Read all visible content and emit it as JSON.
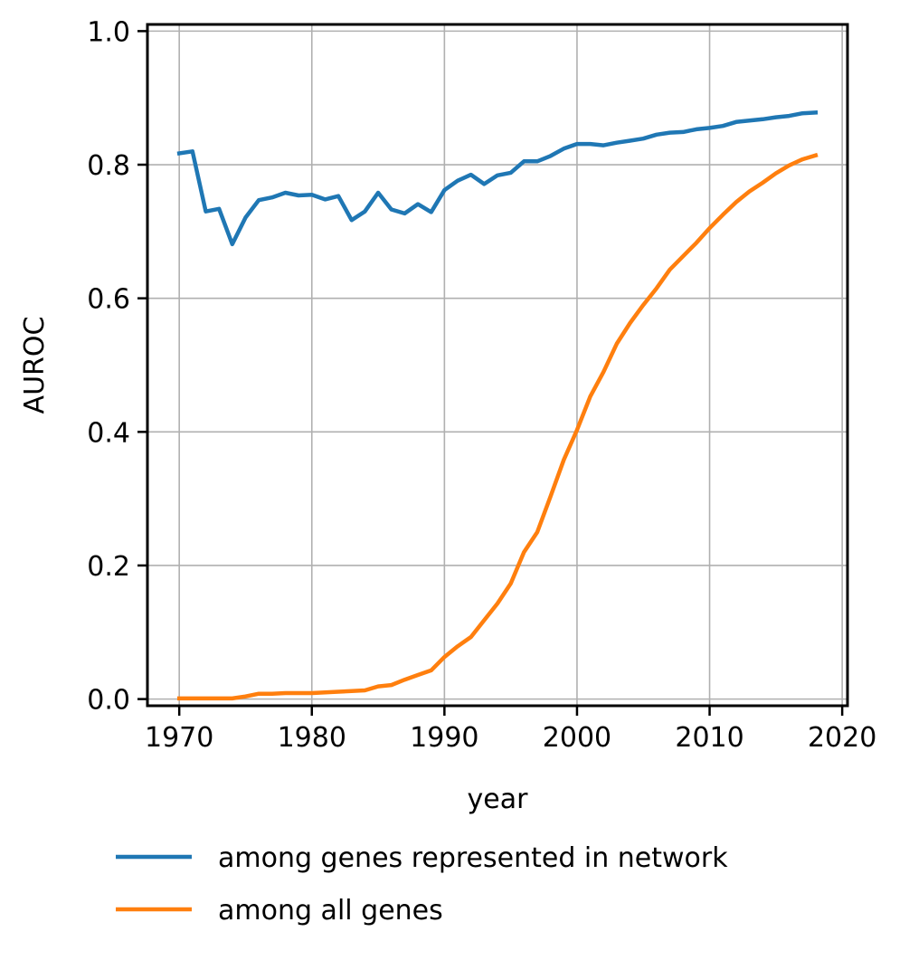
{
  "chart_data": {
    "type": "line",
    "title": "",
    "xlabel": "year",
    "ylabel": "AUROC",
    "xlim": [
      1967.6,
      2020.4
    ],
    "ylim": [
      -0.01,
      1.01
    ],
    "xticks": [
      1970,
      1980,
      1990,
      2000,
      2010,
      2020
    ],
    "yticks": [
      0.0,
      0.2,
      0.4,
      0.6,
      0.8,
      1.0
    ],
    "xtick_labels": [
      "1970",
      "1980",
      "1990",
      "2000",
      "2010",
      "2020"
    ],
    "ytick_labels": [
      "0.0",
      "0.2",
      "0.4",
      "0.6",
      "0.8",
      "1.0"
    ],
    "grid": true,
    "legend_position": "below",
    "x": [
      1970,
      1971,
      1972,
      1973,
      1974,
      1975,
      1976,
      1977,
      1978,
      1979,
      1980,
      1981,
      1982,
      1983,
      1984,
      1985,
      1986,
      1987,
      1988,
      1989,
      1990,
      1991,
      1992,
      1993,
      1994,
      1995,
      1996,
      1997,
      1998,
      1999,
      2000,
      2001,
      2002,
      2003,
      2004,
      2005,
      2006,
      2007,
      2008,
      2009,
      2010,
      2011,
      2012,
      2013,
      2014,
      2015,
      2016,
      2017,
      2018
    ],
    "series": [
      {
        "name": "among genes represented in network",
        "color": "#1f77b4",
        "values": [
          0.817,
          0.82,
          0.73,
          0.734,
          0.681,
          0.721,
          0.747,
          0.751,
          0.758,
          0.754,
          0.755,
          0.748,
          0.753,
          0.717,
          0.73,
          0.758,
          0.733,
          0.727,
          0.741,
          0.729,
          0.762,
          0.776,
          0.785,
          0.771,
          0.784,
          0.788,
          0.805,
          0.805,
          0.813,
          0.824,
          0.831,
          0.831,
          0.829,
          0.833,
          0.836,
          0.839,
          0.845,
          0.848,
          0.849,
          0.853,
          0.855,
          0.858,
          0.864,
          0.866,
          0.868,
          0.871,
          0.873,
          0.877,
          0.878
        ]
      },
      {
        "name": "among all genes",
        "color": "#ff7f0e",
        "values": [
          0.001,
          0.001,
          0.001,
          0.001,
          0.001,
          0.004,
          0.008,
          0.008,
          0.009,
          0.009,
          0.009,
          0.01,
          0.011,
          0.012,
          0.013,
          0.019,
          0.021,
          0.029,
          0.036,
          0.043,
          0.063,
          0.079,
          0.093,
          0.118,
          0.143,
          0.173,
          0.22,
          0.25,
          0.303,
          0.358,
          0.403,
          0.453,
          0.49,
          0.532,
          0.563,
          0.59,
          0.615,
          0.643,
          0.663,
          0.683,
          0.705,
          0.725,
          0.744,
          0.76,
          0.773,
          0.787,
          0.799,
          0.808,
          0.814
        ]
      }
    ]
  }
}
